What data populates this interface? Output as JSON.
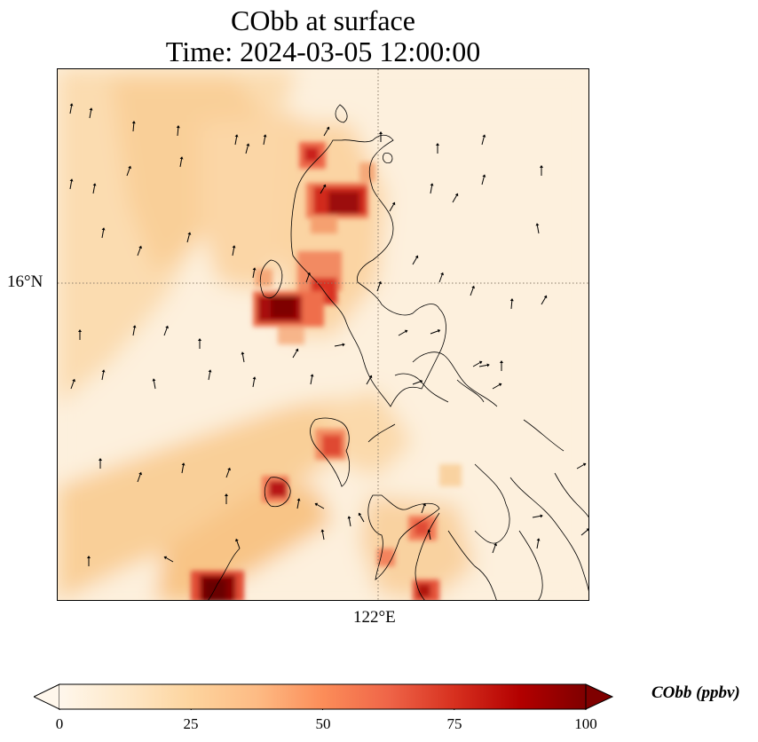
{
  "title": {
    "line1": "CObb at surface",
    "line2": "Time: 2024-03-05 12:00:00"
  },
  "map": {
    "lat_label": "16°N",
    "lon_label": "122°E",
    "colormap": "OrRd",
    "colors": {
      "background": "#fdf0dd",
      "low": "#fce3bd",
      "mid": "#f4a06b",
      "high": "#d7301f",
      "max": "#7f0000",
      "coastline": "#000000",
      "gridline": "#8b7d6b"
    }
  },
  "colorbar": {
    "label": "CObb (ppbv)",
    "min": 0,
    "max": 100,
    "ticks": [
      "0",
      "25",
      "50",
      "75",
      "100"
    ],
    "extend": "both"
  }
}
